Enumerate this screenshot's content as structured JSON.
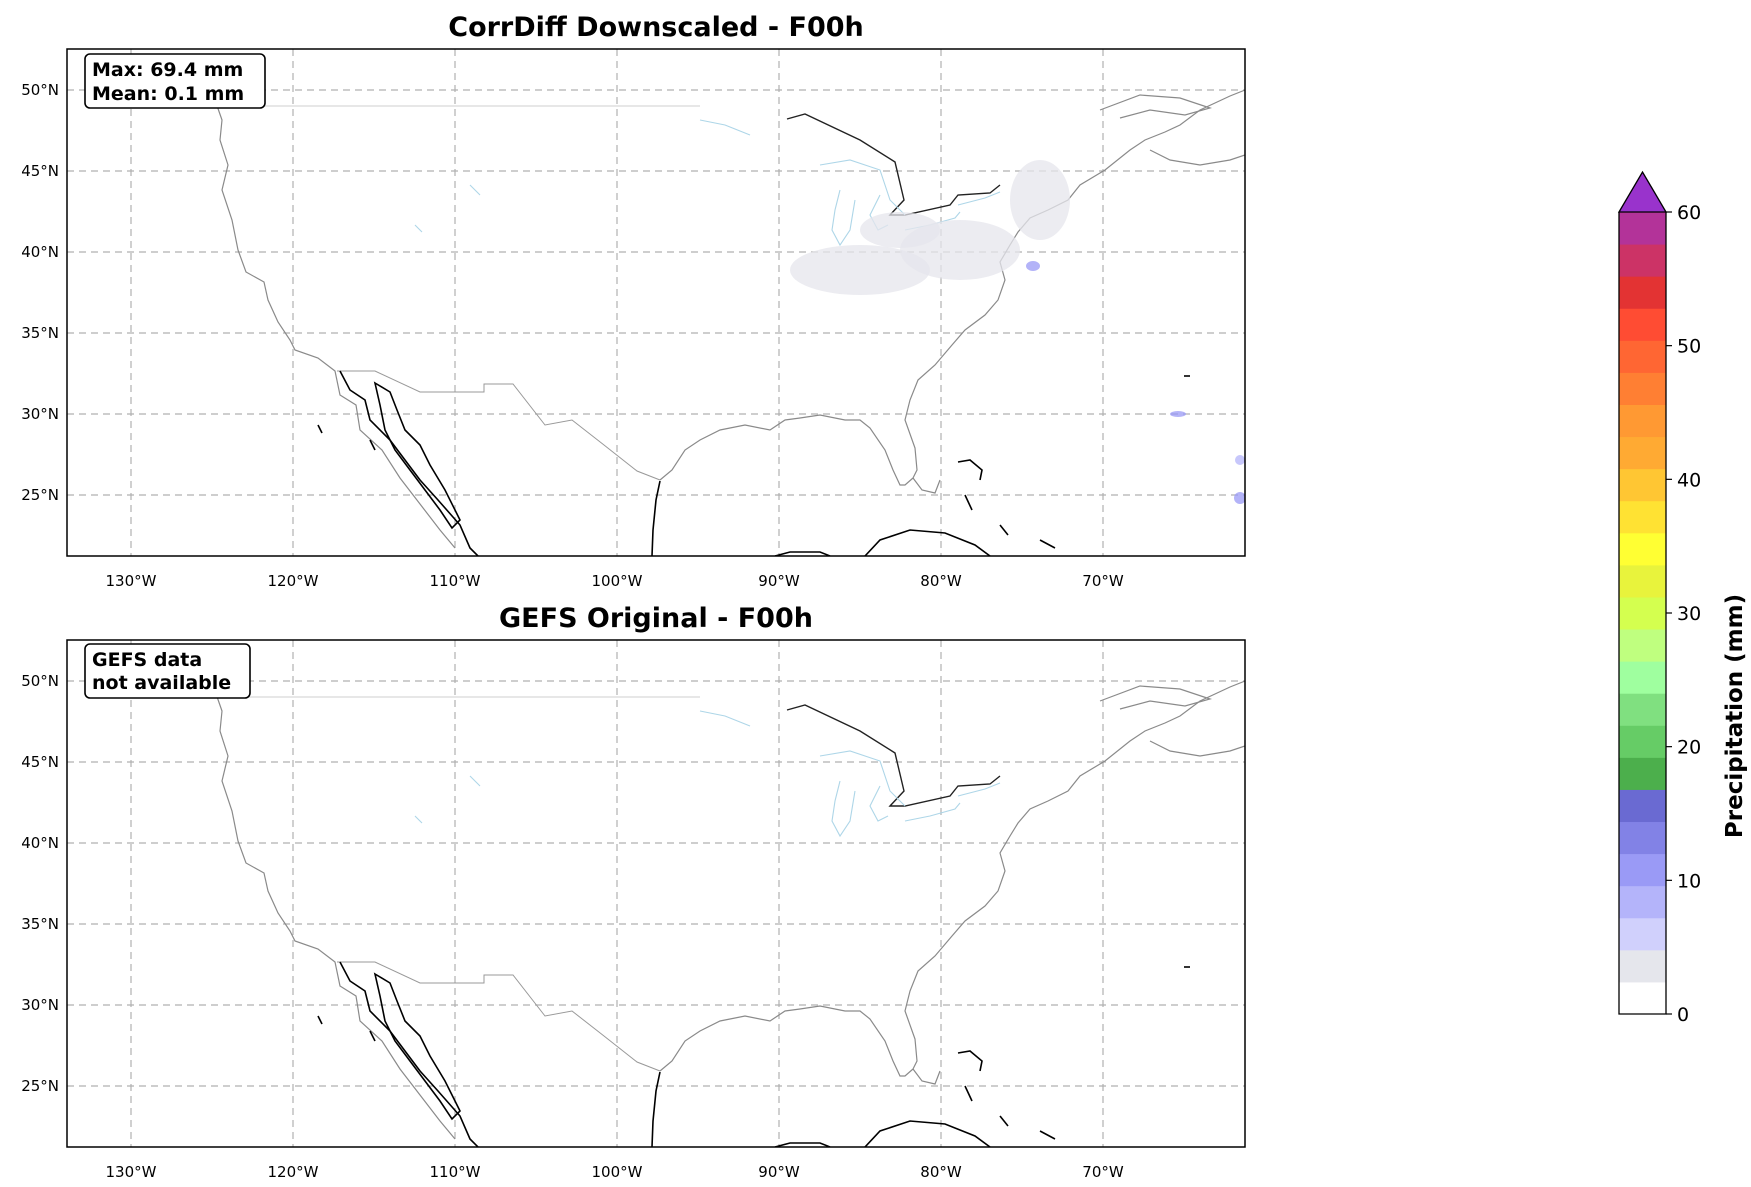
{
  "panels": [
    {
      "title": "CorrDiff Downscaled - F00h",
      "info_lines": [
        "Max: 69.4 mm",
        "Mean: 0.1 mm"
      ],
      "show_precip": true
    },
    {
      "title": "GEFS Original - F00h",
      "info_lines": [
        "GEFS data",
        "not available"
      ],
      "show_precip": false
    }
  ],
  "lon_ticks": [
    "130°W",
    "120°W",
    "110°W",
    "100°W",
    "90°W",
    "80°W",
    "70°W"
  ],
  "lat_ticks": [
    "50°N",
    "45°N",
    "40°N",
    "35°N",
    "30°N",
    "25°N"
  ],
  "colorbar": {
    "label": "Precipitation (mm)",
    "tick_labels": [
      "0",
      "10",
      "20",
      "30",
      "40",
      "50",
      "60"
    ],
    "extend": "max",
    "levels_mm": [
      0,
      2.4,
      4.8,
      7.2,
      9.6,
      12,
      14.4,
      16.8,
      19.2,
      21.6,
      24,
      26.4,
      28.8,
      31.2,
      33.6,
      36,
      38.4,
      40.8,
      43.2,
      45.6,
      48,
      50.4,
      52.8,
      55.2,
      57.6,
      60
    ],
    "colors": [
      "#ffffff",
      "#e5e6ec",
      "#d0d0fc",
      "#b4b4fa",
      "#9a9af6",
      "#8282e6",
      "#6a6ad2",
      "#4caf4c",
      "#66cc66",
      "#80e080",
      "#9fff9f",
      "#bfff7f",
      "#d4ff4f",
      "#e8f33c",
      "#ffff33",
      "#ffe233",
      "#ffc633",
      "#ffaa33",
      "#ff9933",
      "#ff7f33",
      "#ff6633",
      "#ff4c33",
      "#e33333",
      "#cc3366",
      "#b33399",
      "#9933cc"
    ]
  }
}
